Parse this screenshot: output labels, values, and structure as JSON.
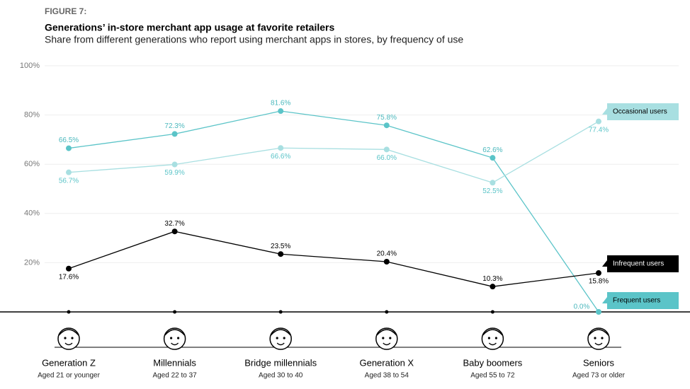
{
  "chart_data": {
    "type": "line",
    "figure_label": "FIGURE 7:",
    "title": "Generations’ in-store merchant app usage at favorite retailers",
    "subtitle": "Share from different generations who report using merchant apps in stores, by frequency of use",
    "categories": [
      "Generation Z",
      "Millennials",
      "Bridge millennials",
      "Generation X",
      "Baby boomers",
      "Seniors"
    ],
    "category_notes": [
      "Aged 21 or younger",
      "Aged 22 to 37",
      "Aged 30 to 40",
      "Aged 38 to 54",
      "Aged 55 to 72",
      "Aged 73 or older"
    ],
    "ylim": [
      0,
      100
    ],
    "yticks": [
      {
        "value": 20,
        "label": "20%"
      },
      {
        "value": 40,
        "label": "40%"
      },
      {
        "value": 60,
        "label": "60%"
      },
      {
        "value": 80,
        "label": "80%"
      },
      {
        "value": 100,
        "label": "100%"
      }
    ],
    "grid": true,
    "series": [
      {
        "name": "Frequent users",
        "color": "#5bc4c8",
        "values": [
          66.5,
          72.3,
          81.6,
          75.8,
          62.6,
          0.0
        ],
        "value_labels": [
          "66.5%",
          "72.3%",
          "81.6%",
          "75.8%",
          "62.6%",
          "0.0%"
        ]
      },
      {
        "name": "Occasional users",
        "color": "#a8dfe1",
        "values": [
          56.7,
          59.9,
          66.6,
          66.0,
          52.5,
          77.4
        ],
        "value_labels": [
          "56.7%",
          "59.9%",
          "66.6%",
          "66.0%",
          "52.5%",
          "77.4%"
        ]
      },
      {
        "name": "Infrequent users",
        "color": "#000000",
        "values": [
          17.6,
          32.7,
          23.5,
          20.4,
          10.3,
          15.8
        ],
        "value_labels": [
          "17.6%",
          "32.7%",
          "23.5%",
          "20.4%",
          "10.3%",
          "15.8%"
        ]
      }
    ]
  }
}
